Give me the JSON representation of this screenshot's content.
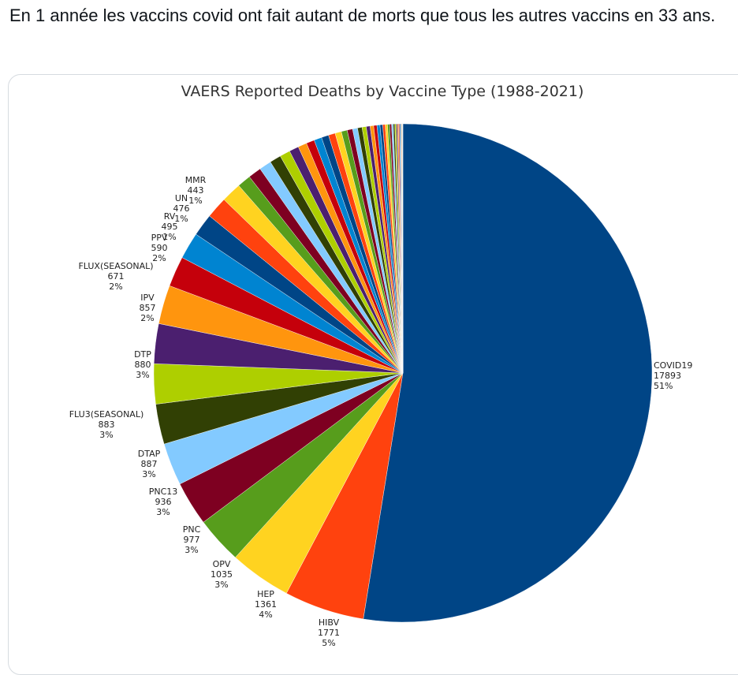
{
  "tweet": {
    "text": "En 1 année les vaccins covid ont fait autant de morts que tous les autres vaccins en 33 ans."
  },
  "chart_data": {
    "type": "pie",
    "title": "VAERS Reported Deaths by Vaccine Type (1988-2021)",
    "labeled_slices": [
      {
        "name": "COVID19",
        "value": 17893,
        "percent": "51%",
        "color": "#004586"
      },
      {
        "name": "HIBV",
        "value": 1771,
        "percent": "5%",
        "color": "#ff420e"
      },
      {
        "name": "HEP",
        "value": 1361,
        "percent": "4%",
        "color": "#ffd320"
      },
      {
        "name": "OPV",
        "value": 1035,
        "percent": "3%",
        "color": "#579d1c"
      },
      {
        "name": "PNC",
        "value": 977,
        "percent": "3%",
        "color": "#7e0021"
      },
      {
        "name": "PNC13",
        "value": 936,
        "percent": "3%",
        "color": "#83caff"
      },
      {
        "name": "DTAP",
        "value": 887,
        "percent": "3%",
        "color": "#314004"
      },
      {
        "name": "FLU3(SEASONAL)",
        "value": 883,
        "percent": "3%",
        "color": "#aecf00"
      },
      {
        "name": "DTP",
        "value": 880,
        "percent": "3%",
        "color": "#4b1f6f"
      },
      {
        "name": "IPV",
        "value": 857,
        "percent": "2%",
        "color": "#ff950e"
      },
      {
        "name": "FLUX(SEASONAL)",
        "value": 671,
        "percent": "2%",
        "color": "#c5000b"
      },
      {
        "name": "PPV",
        "value": 590,
        "percent": "2%",
        "color": "#0084d1"
      },
      {
        "name": "RV",
        "value": 495,
        "percent": "1%",
        "color": "#004586"
      },
      {
        "name": "UN",
        "value": 476,
        "percent": "1%",
        "color": "#ff420e"
      },
      {
        "name": "MMR",
        "value": 443,
        "percent": "1%",
        "color": "#ffd320"
      }
    ],
    "unlabeled_slices": [
      300,
      290,
      270,
      250,
      230,
      210,
      195,
      180,
      170,
      160,
      150,
      140,
      130,
      120,
      110,
      100,
      92,
      85,
      78,
      72,
      66,
      60,
      55,
      50,
      46,
      42,
      38,
      34,
      30,
      27,
      24,
      21,
      18,
      15,
      12,
      10,
      8,
      6,
      5
    ],
    "palette": [
      "#004586",
      "#ff420e",
      "#ffd320",
      "#579d1c",
      "#7e0021",
      "#83caff",
      "#314004",
      "#aecf00",
      "#4b1f6f",
      "#ff950e",
      "#c5000b",
      "#0084d1"
    ]
  }
}
